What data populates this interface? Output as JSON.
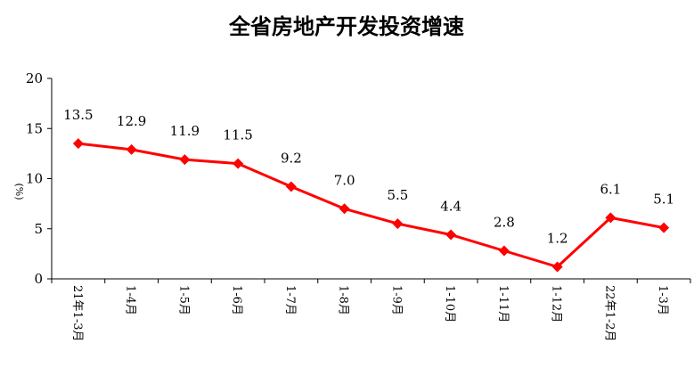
{
  "chart_data": {
    "type": "line",
    "title": "全省房地产开发投资增速",
    "xlabel": "",
    "ylabel": "(%)",
    "ylim": [
      0,
      20
    ],
    "yticks": [
      0,
      5,
      10,
      15,
      20
    ],
    "grid": false,
    "legend": "none",
    "categories": [
      "21年1-3月",
      "1-4月",
      "1-5月",
      "1-6月",
      "1-7月",
      "1-8月",
      "1-9月",
      "1-10月",
      "1-11月",
      "1-12月",
      "22年1-2月",
      "1-3月"
    ],
    "series": [
      {
        "values": [
          13.5,
          12.9,
          11.9,
          11.5,
          9.2,
          7.0,
          5.5,
          4.4,
          2.8,
          1.2,
          6.1,
          5.1
        ],
        "labels": [
          "13.5",
          "12.9",
          "11.9",
          "11.5",
          "9.2",
          "7.0",
          "5.5",
          "4.4",
          "2.8",
          "1.2",
          "6.1",
          "5.1"
        ],
        "color": "#ff0000"
      }
    ]
  }
}
